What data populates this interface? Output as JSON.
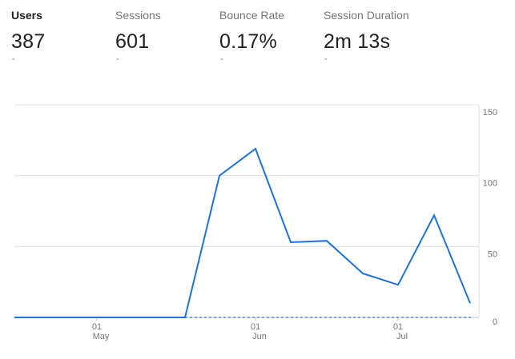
{
  "metrics": [
    {
      "label": "Users",
      "value": "387",
      "change": "-"
    },
    {
      "label": "Sessions",
      "value": "601",
      "change": "-"
    },
    {
      "label": "Bounce Rate",
      "value": "0.17%",
      "change": "-"
    },
    {
      "label": "Session Duration",
      "value": "2m 13s",
      "change": "-"
    }
  ],
  "active_metric": "Users",
  "colors": {
    "line": "#1a73e8",
    "grid": "#e0e0e0",
    "axis_text": "#757575"
  },
  "chart_data": {
    "type": "line",
    "series": [
      {
        "values": [
          0,
          0,
          0,
          0,
          0,
          0,
          100,
          119,
          53,
          54,
          31,
          23,
          72,
          10
        ],
        "values_comment": "",
        "dashed_tail_values": [
          0,
          0,
          0,
          0,
          0,
          0,
          0,
          0,
          0,
          0,
          0,
          0,
          0,
          0
        ]
      }
    ],
    "y_ticks": [
      "150",
      "100",
      "50",
      "0"
    ],
    "ylim": [
      0,
      150
    ],
    "x_tick_labels": [
      {
        "day": "01",
        "month": "May"
      },
      {
        "day": "01",
        "month": "Jun"
      },
      {
        "day": "01",
        "month": "Jul"
      }
    ],
    "grid": true
  }
}
